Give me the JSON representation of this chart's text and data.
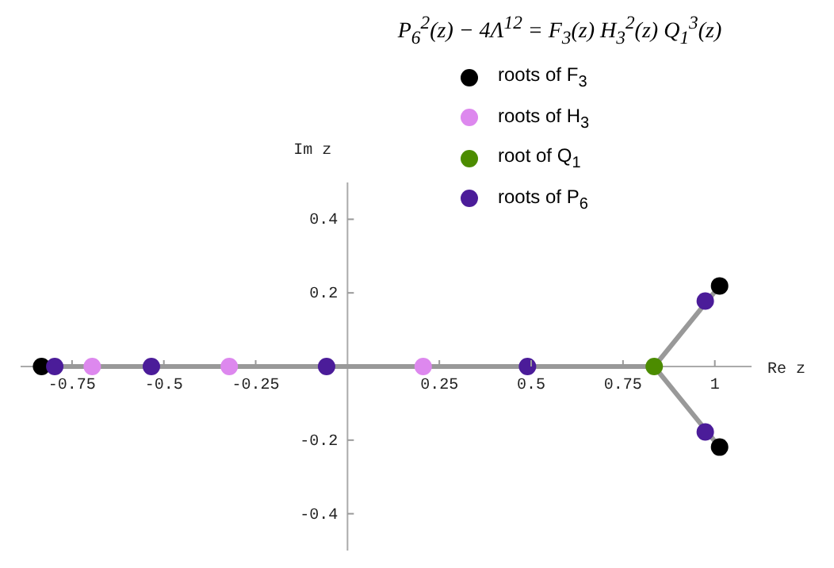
{
  "chart_data": {
    "type": "scatter",
    "title": "P$_{6}$$^{2}$(z) − 4Λ$^{12}$ = F$_{3}$(z) H$_{3}$$^{2}$(z) Q$_{1}$$^{3}$(z)",
    "xlabel": "Re z",
    "ylabel": "Im z",
    "xlim": [
      -0.89,
      1.1
    ],
    "ylim": [
      -0.5,
      0.5
    ],
    "xticks": [
      -0.75,
      -0.5,
      -0.25,
      0.25,
      0.5,
      0.75,
      1
    ],
    "yticks": [
      -0.4,
      -0.2,
      0.2,
      0.4
    ],
    "grid": false,
    "legend": "top",
    "marker": "circle",
    "series": [
      {
        "type": "line",
        "marker": "none",
        "color": "#999999",
        "x": [
          -0.833,
          0.835,
          1.013
        ],
        "values": [
          0,
          0,
          0.219
        ]
      },
      {
        "type": "line",
        "marker": "none",
        "color": "#999999",
        "x": [
          0.835,
          1.013
        ],
        "values": [
          0,
          -0.219
        ]
      },
      {
        "name": "roots of F$_{3}$",
        "color": "#000000",
        "x": [
          -0.833,
          1.013,
          1.013
        ],
        "values": [
          0,
          0.219,
          -0.219
        ]
      },
      {
        "name": "roots of H$_{3}$",
        "color": "#dd88ee",
        "x": [
          -0.695,
          -0.322,
          0.206
        ],
        "values": [
          0,
          0,
          0
        ]
      },
      {
        "name": "root of Q$_{1}$",
        "color": "#4c8c00",
        "x": [
          0.835
        ],
        "values": [
          0
        ]
      },
      {
        "name": "roots of P$_{6}$",
        "color": "#4b1c99",
        "x": [
          -0.797,
          -0.534,
          -0.057,
          0.49,
          0.974,
          0.974
        ],
        "values": [
          0,
          0,
          0,
          0,
          0.178,
          -0.178
        ]
      }
    ]
  }
}
